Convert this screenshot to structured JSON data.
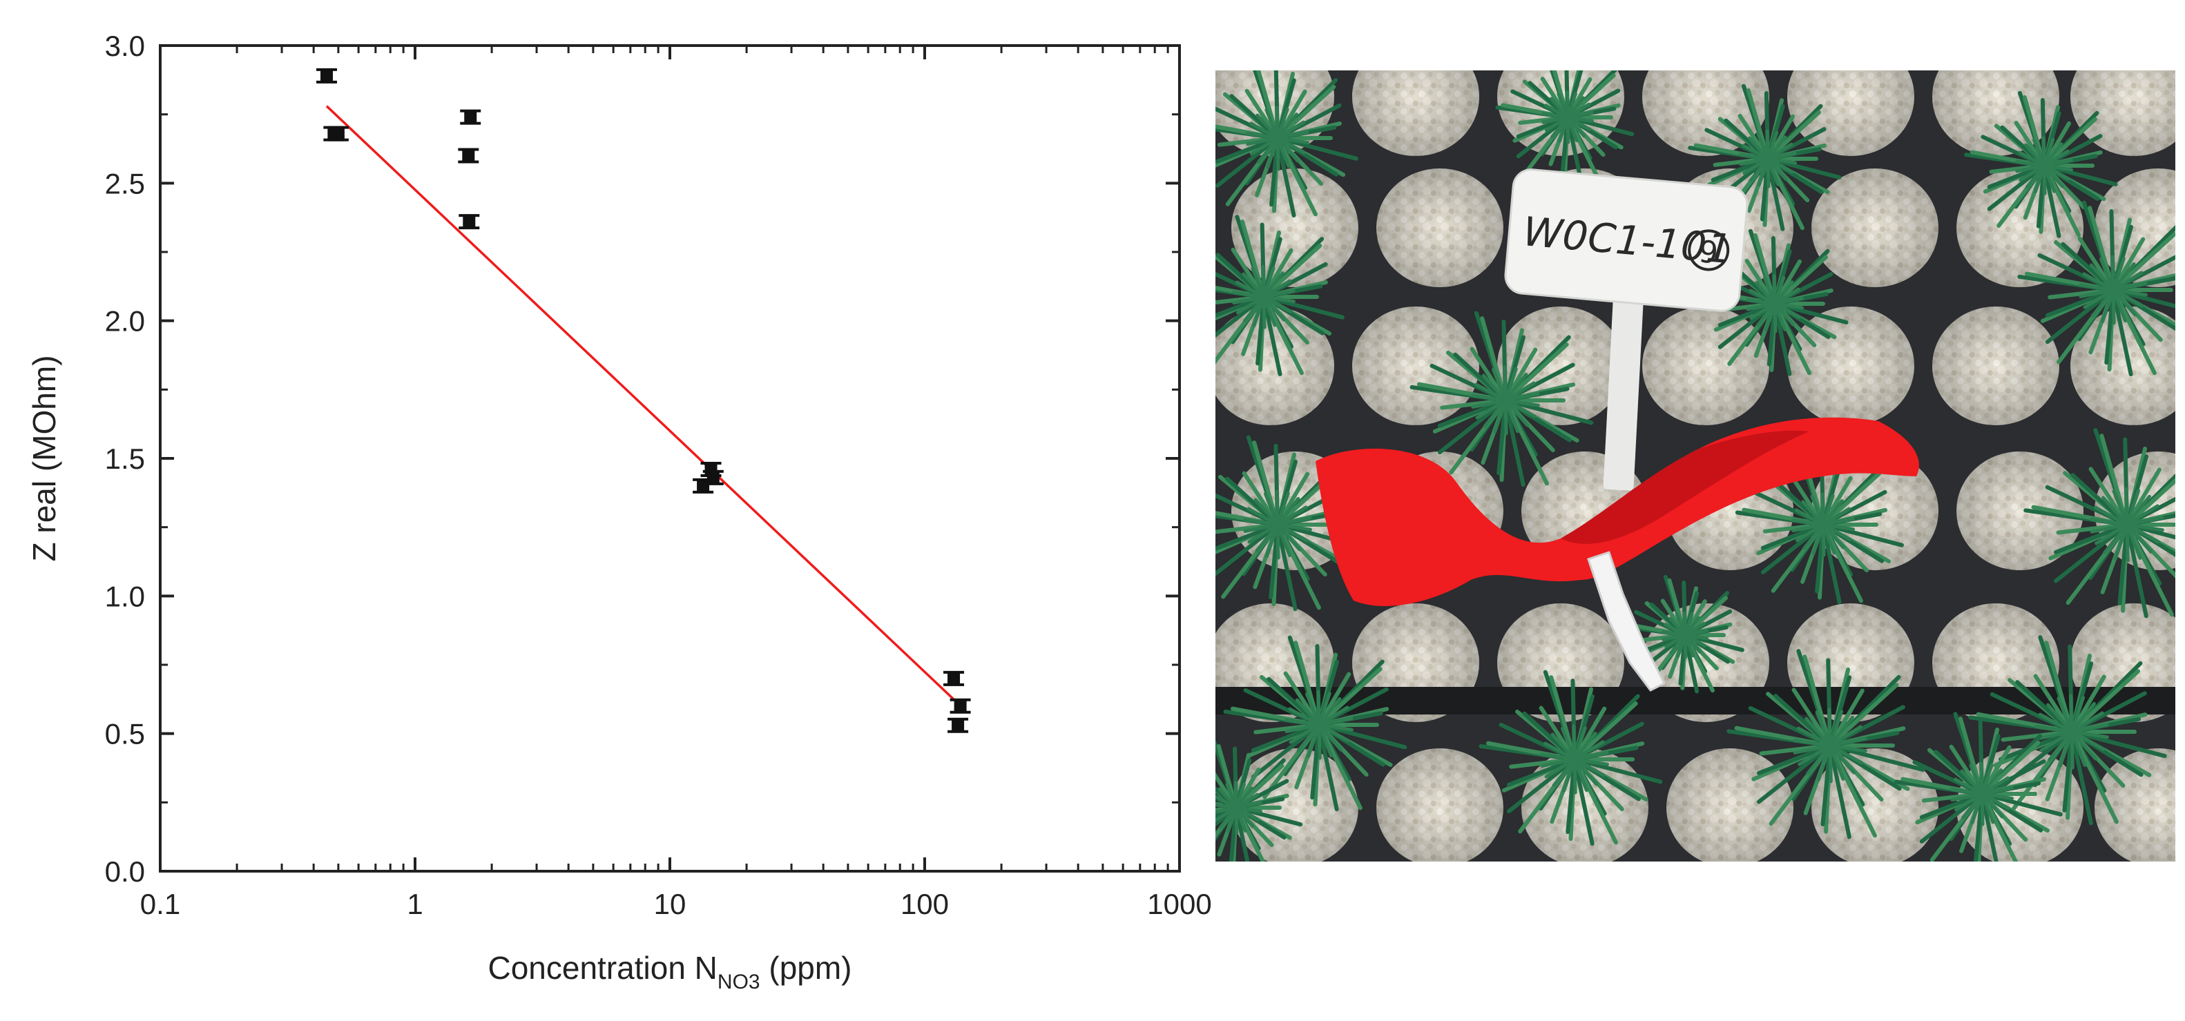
{
  "chart_data": {
    "type": "scatter",
    "title": "",
    "xlabel_main": "Concentration N",
    "xlabel_sub": "NO3",
    "xlabel_unit": "(ppm)",
    "ylabel": "Z real (MOhm)",
    "x_scale": "log",
    "xlim": [
      0.1,
      1000
    ],
    "ylim": [
      0.0,
      3.0
    ],
    "x_ticks": [
      0.1,
      1,
      10,
      100,
      1000
    ],
    "x_tick_labels": [
      "0.1",
      "1",
      "10",
      "100",
      "1000"
    ],
    "y_ticks": [
      0.0,
      0.5,
      1.0,
      1.5,
      2.0,
      2.5,
      3.0
    ],
    "y_tick_labels": [
      "0.0",
      "0.5",
      "1.0",
      "1.5",
      "2.0",
      "2.5",
      "3.0"
    ],
    "grid": false,
    "series": [
      {
        "kind": "points",
        "color": "#111111",
        "x": [
          0.45,
          0.48,
          0.5,
          1.62,
          1.65,
          1.63,
          13.5,
          14.5,
          14.8,
          130,
          138,
          135
        ],
        "y": [
          2.89,
          2.68,
          2.68,
          2.6,
          2.74,
          2.36,
          1.4,
          1.46,
          1.43,
          0.7,
          0.6,
          0.53
        ]
      },
      {
        "kind": "fit-line",
        "color": "#ee1c1c",
        "x": [
          0.45,
          135
        ],
        "y": [
          2.78,
          0.61
        ]
      }
    ]
  },
  "photo": {
    "label_text": "W0C1-101",
    "label_circled": "9",
    "colors": {
      "tray": "#2b2d30",
      "perlite": "#e6e2d6",
      "seedling": "#1f6a45",
      "seedling_light": "#3b8a5a",
      "ribbon": "#ef1c20",
      "tag": "#f3f4f2"
    }
  }
}
